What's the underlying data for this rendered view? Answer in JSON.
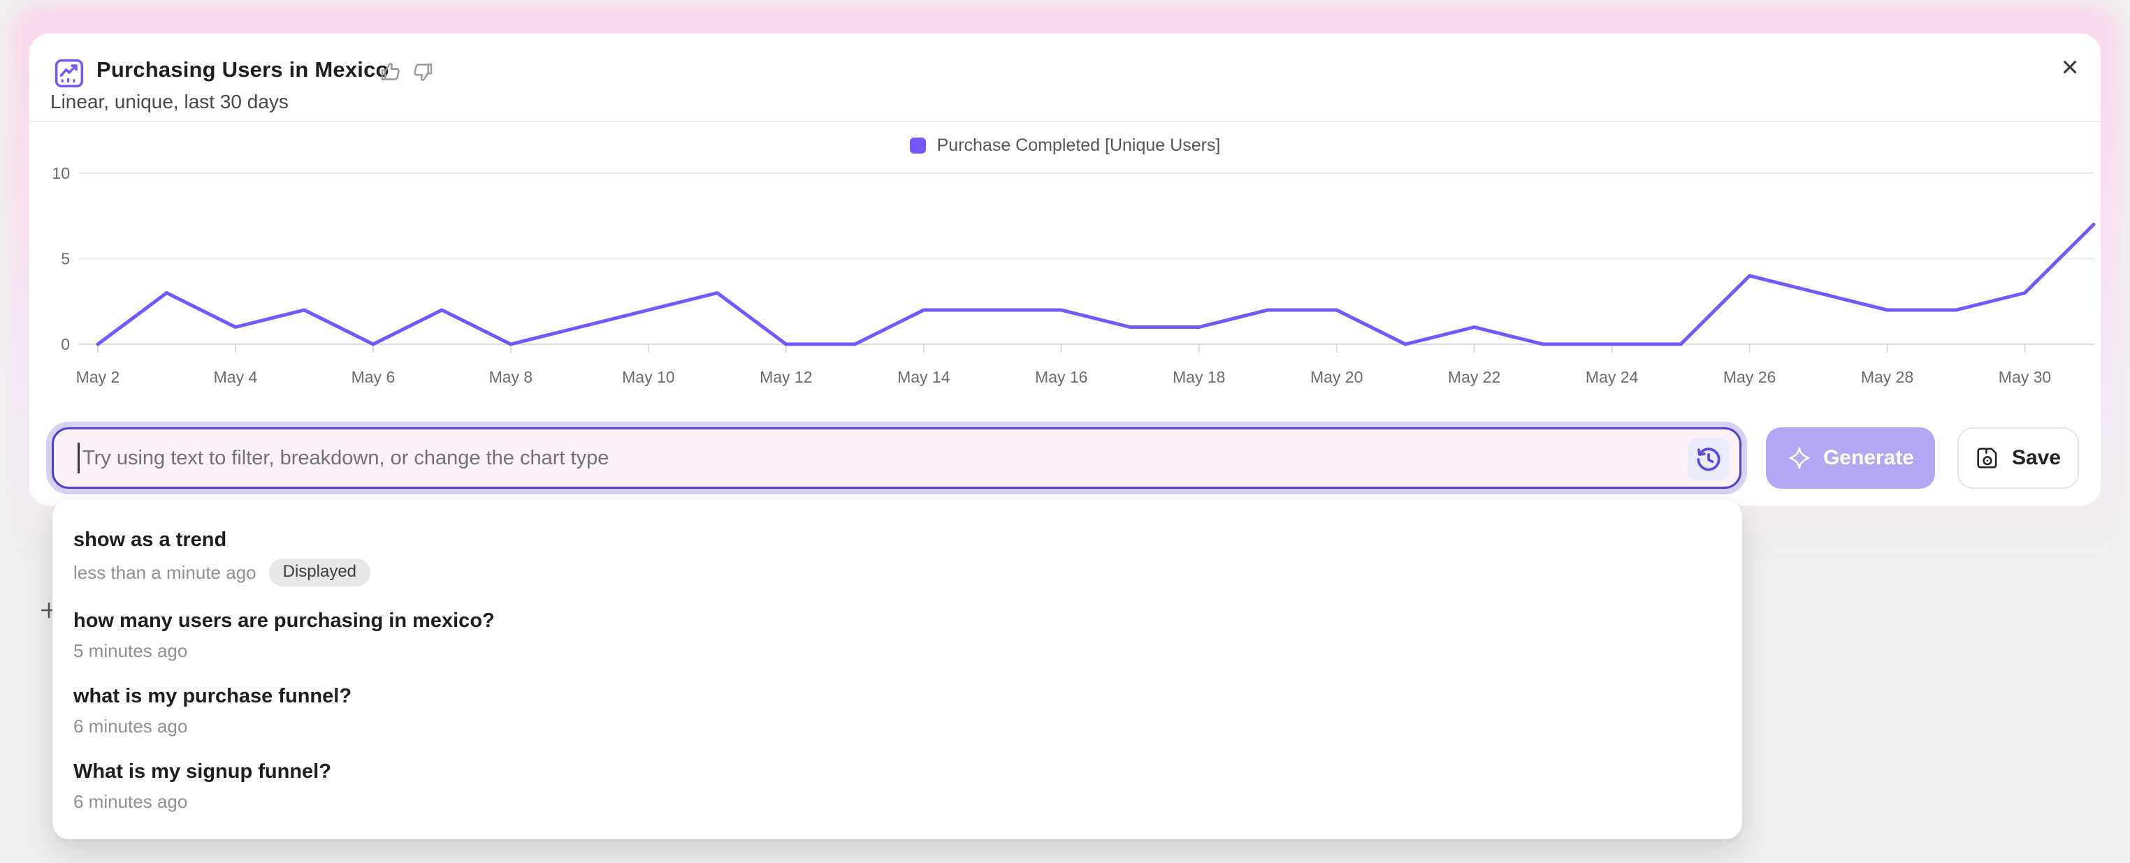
{
  "window": {
    "close_label": "×"
  },
  "header": {
    "title": "Purchasing Users in Mexico",
    "subtitle": "Linear, unique, last 30 days"
  },
  "chart_data": {
    "type": "line",
    "title": "Purchasing Users in Mexico",
    "x": [
      "May 2",
      "May 3",
      "May 4",
      "May 5",
      "May 6",
      "May 7",
      "May 8",
      "May 9",
      "May 10",
      "May 11",
      "May 12",
      "May 13",
      "May 14",
      "May 15",
      "May 16",
      "May 17",
      "May 18",
      "May 19",
      "May 20",
      "May 21",
      "May 22",
      "May 23",
      "May 24",
      "May 25",
      "May 26",
      "May 27",
      "May 28",
      "May 29",
      "May 30",
      "May 31"
    ],
    "x_tick_labels": [
      "May 2",
      "May 4",
      "May 6",
      "May 8",
      "May 10",
      "May 12",
      "May 14",
      "May 16",
      "May 18",
      "May 20",
      "May 22",
      "May 24",
      "May 26",
      "May 28",
      "May 30"
    ],
    "series": [
      {
        "name": "Purchase Completed [Unique Users]",
        "color": "#7856ff",
        "values": [
          0,
          3,
          1,
          2,
          0,
          2,
          0,
          1,
          2,
          3,
          0,
          0,
          2,
          2,
          2,
          1,
          1,
          2,
          2,
          0,
          1,
          0,
          0,
          0,
          4,
          3,
          2,
          2,
          3,
          7
        ]
      }
    ],
    "ylim": [
      0,
      10
    ],
    "yticks": [
      0,
      5,
      10
    ],
    "grid": "horizontal",
    "legend_position": "top-center"
  },
  "prompt_bar": {
    "placeholder": "Try using text to filter, breakdown, or change the chart type",
    "generate_label": "Generate",
    "save_label": "Save"
  },
  "history_dropdown": {
    "items": [
      {
        "query": "show as a trend",
        "time": "less than a minute ago",
        "badge": "Displayed"
      },
      {
        "query": "how many users are purchasing in mexico?",
        "time": "5 minutes ago"
      },
      {
        "query": "what is my purchase funnel?",
        "time": "6 minutes ago"
      },
      {
        "query": "What is my signup funnel?",
        "time": "6 minutes ago"
      }
    ]
  },
  "colors": {
    "accent_purple": "#7856ff",
    "input_border": "#4b3fd8",
    "generate_bg": "#b5a7f3",
    "glow_pink": "#f8d9ec"
  }
}
